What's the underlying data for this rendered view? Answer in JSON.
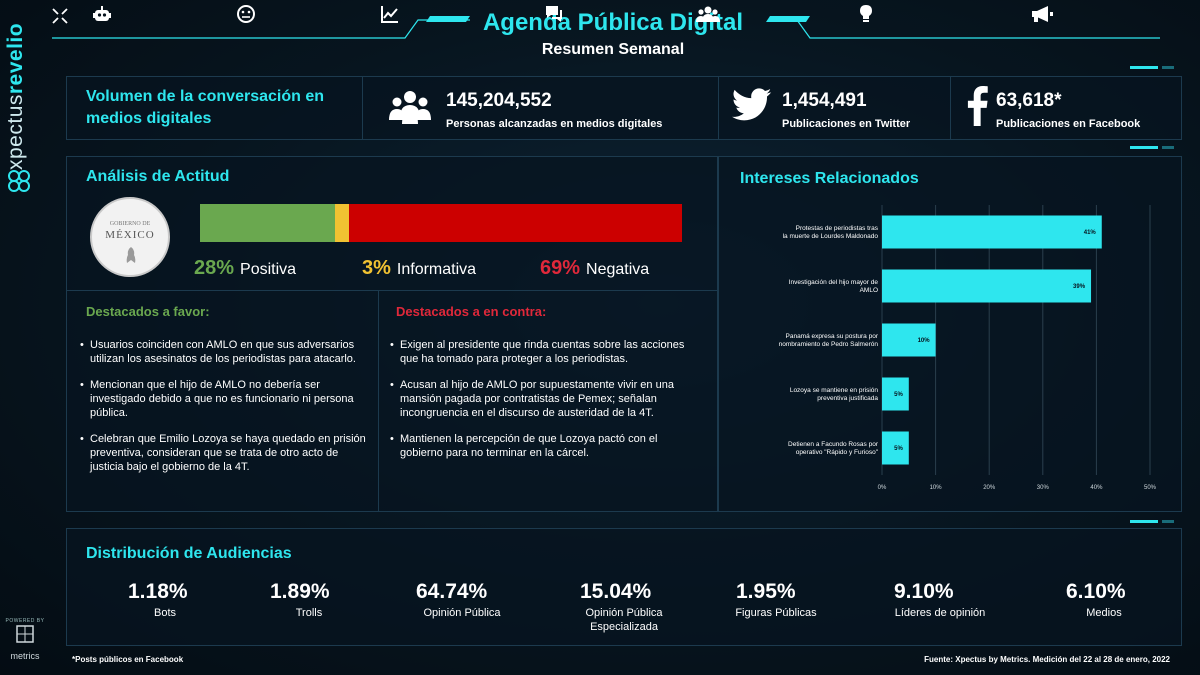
{
  "brand": {
    "name_part1": "xpectus",
    "name_part2": "revelio",
    "powered_by": "POWERED BY",
    "powered_name": "metrics"
  },
  "header": {
    "title": "Agenda Pública Digital",
    "subtitle": "Resumen Semanal"
  },
  "volume": {
    "title": "Volumen de la conversación en medios digitales",
    "stats": [
      {
        "icon": "people-icon",
        "value": "145,204,552",
        "label": "Personas alcanzadas en medios digitales"
      },
      {
        "icon": "twitter-icon",
        "value": "1,454,491",
        "label": "Publicaciones en Twitter"
      },
      {
        "icon": "facebook-icon",
        "value": "63,618*",
        "label": "Publicaciones en Facebook"
      }
    ]
  },
  "attitude": {
    "title": "Análisis de Actitud",
    "seal": {
      "line1": "GOBIERNO DE",
      "line2": "MÉXICO"
    },
    "segments": [
      {
        "pct": 28,
        "pct_label": "28%",
        "label": "Positiva",
        "color": "#6aa84f",
        "label_color": "#6aa84f"
      },
      {
        "pct": 3,
        "pct_label": "3%",
        "label": "Informativa",
        "color": "#f1c232",
        "label_color": "#f1c232"
      },
      {
        "pct": 69,
        "pct_label": "69%",
        "label": "Negativa",
        "color": "#cc0000",
        "label_color": "#e0283a"
      }
    ],
    "favor": {
      "title": "Destacados a favor:",
      "items": [
        "Usuarios coinciden con AMLO en que sus adversarios utilizan los asesinatos de los periodistas para atacarlo.",
        "Mencionan que el hijo de AMLO no debería ser investigado debido a que no es funcionario ni persona pública.",
        "Celebran que Emilio Lozoya se haya quedado en prisión preventiva, consideran que se trata de otro acto de justicia bajo el gobierno de la 4T."
      ]
    },
    "contra": {
      "title": "Destacados a en contra:",
      "items": [
        "Exigen al presidente que rinda cuentas sobre las acciones que ha tomado para proteger a los periodistas.",
        "Acusan al hijo de AMLO por supuestamente vivir en una mansión pagada por contratistas de Pemex; señalan incongruencia en el discurso de austeridad de la 4T.",
        "Mantienen la percepción de que Lozoya pactó con el gobierno para no terminar en la cárcel."
      ]
    }
  },
  "interests": {
    "title": "Intereses Relacionados"
  },
  "chart_data": {
    "type": "bar",
    "orientation": "horizontal",
    "title": "Intereses Relacionados",
    "categories": [
      "Protestas de periodistas tras la muerte de Lourdes Maldonado",
      "Investigación del hijo mayor de AMLO",
      "Panamá expresa su postura por nombramiento de Pedro Salmerón",
      "Lozoya se mantiene en prisión preventiva justificada",
      "Detienen a Facundo Rosas por operativo \"Rápido y Furioso\""
    ],
    "values": [
      41,
      39,
      10,
      5,
      5
    ],
    "value_labels": [
      "41%",
      "39%",
      "10%",
      "5%",
      "5%"
    ],
    "xticks": [
      "0%",
      "10%",
      "20%",
      "30%",
      "40%",
      "50%"
    ],
    "xlim": [
      0,
      50
    ],
    "grid": true,
    "bar_color": "#2ee6ee"
  },
  "audiences": {
    "title": "Distribución de Audiencias",
    "items": [
      {
        "icon": "robot-icon",
        "value": "1.18%",
        "label": "Bots"
      },
      {
        "icon": "troll-face-icon",
        "value": "1.89%",
        "label": "Trolls"
      },
      {
        "icon": "trend-chart-icon",
        "value": "64.74%",
        "label": "Opinión Pública"
      },
      {
        "icon": "chat-bubble-icon",
        "value": "15.04%",
        "label": "Opinión Pública Especializada"
      },
      {
        "icon": "group-icon",
        "value": "1.95%",
        "label": "Figuras Públicas"
      },
      {
        "icon": "lightbulb-icon",
        "value": "9.10%",
        "label": "Líderes de opinión"
      },
      {
        "icon": "megaphone-icon",
        "value": "6.10%",
        "label": "Medios"
      }
    ]
  },
  "footer": {
    "note": "*Posts públicos en Facebook",
    "source": "Fuente: Xpectus by Metrics. Medición del 22 al 28 de enero, 2022"
  }
}
